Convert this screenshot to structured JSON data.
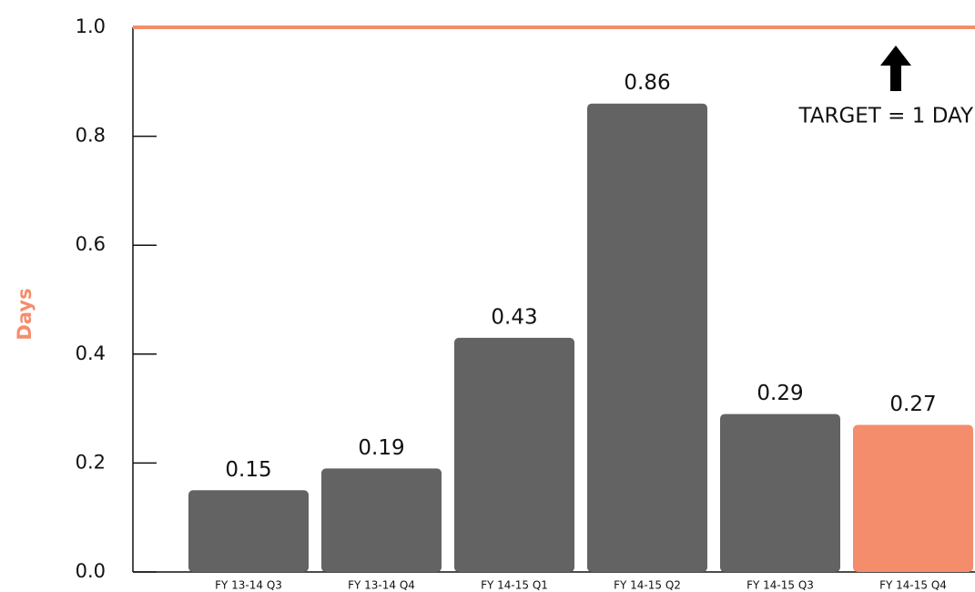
{
  "chart_data": {
    "type": "bar",
    "y_label": "Days",
    "categories": [
      "FY 13-14 Q3",
      "FY 13-14 Q4",
      "FY 14-15 Q1",
      "FY 14-15 Q2",
      "FY 14-15 Q3",
      "FY 14-15 Q4"
    ],
    "values": [
      0.15,
      0.19,
      0.43,
      0.86,
      0.29,
      0.27
    ],
    "colors": [
      "#636364",
      "#636364",
      "#636364",
      "#636364",
      "#636364",
      "#f48d6c"
    ],
    "ylim": [
      0,
      1.0
    ],
    "yticks": [
      {
        "value": 0,
        "label": "0.0"
      },
      0.2,
      0.4,
      0.6,
      0.8,
      {
        "value": 1,
        "label": "1.0"
      }
    ],
    "target": 1,
    "target_color": "#f48d6c",
    "target_label": "TARGET = 1 DAY"
  }
}
